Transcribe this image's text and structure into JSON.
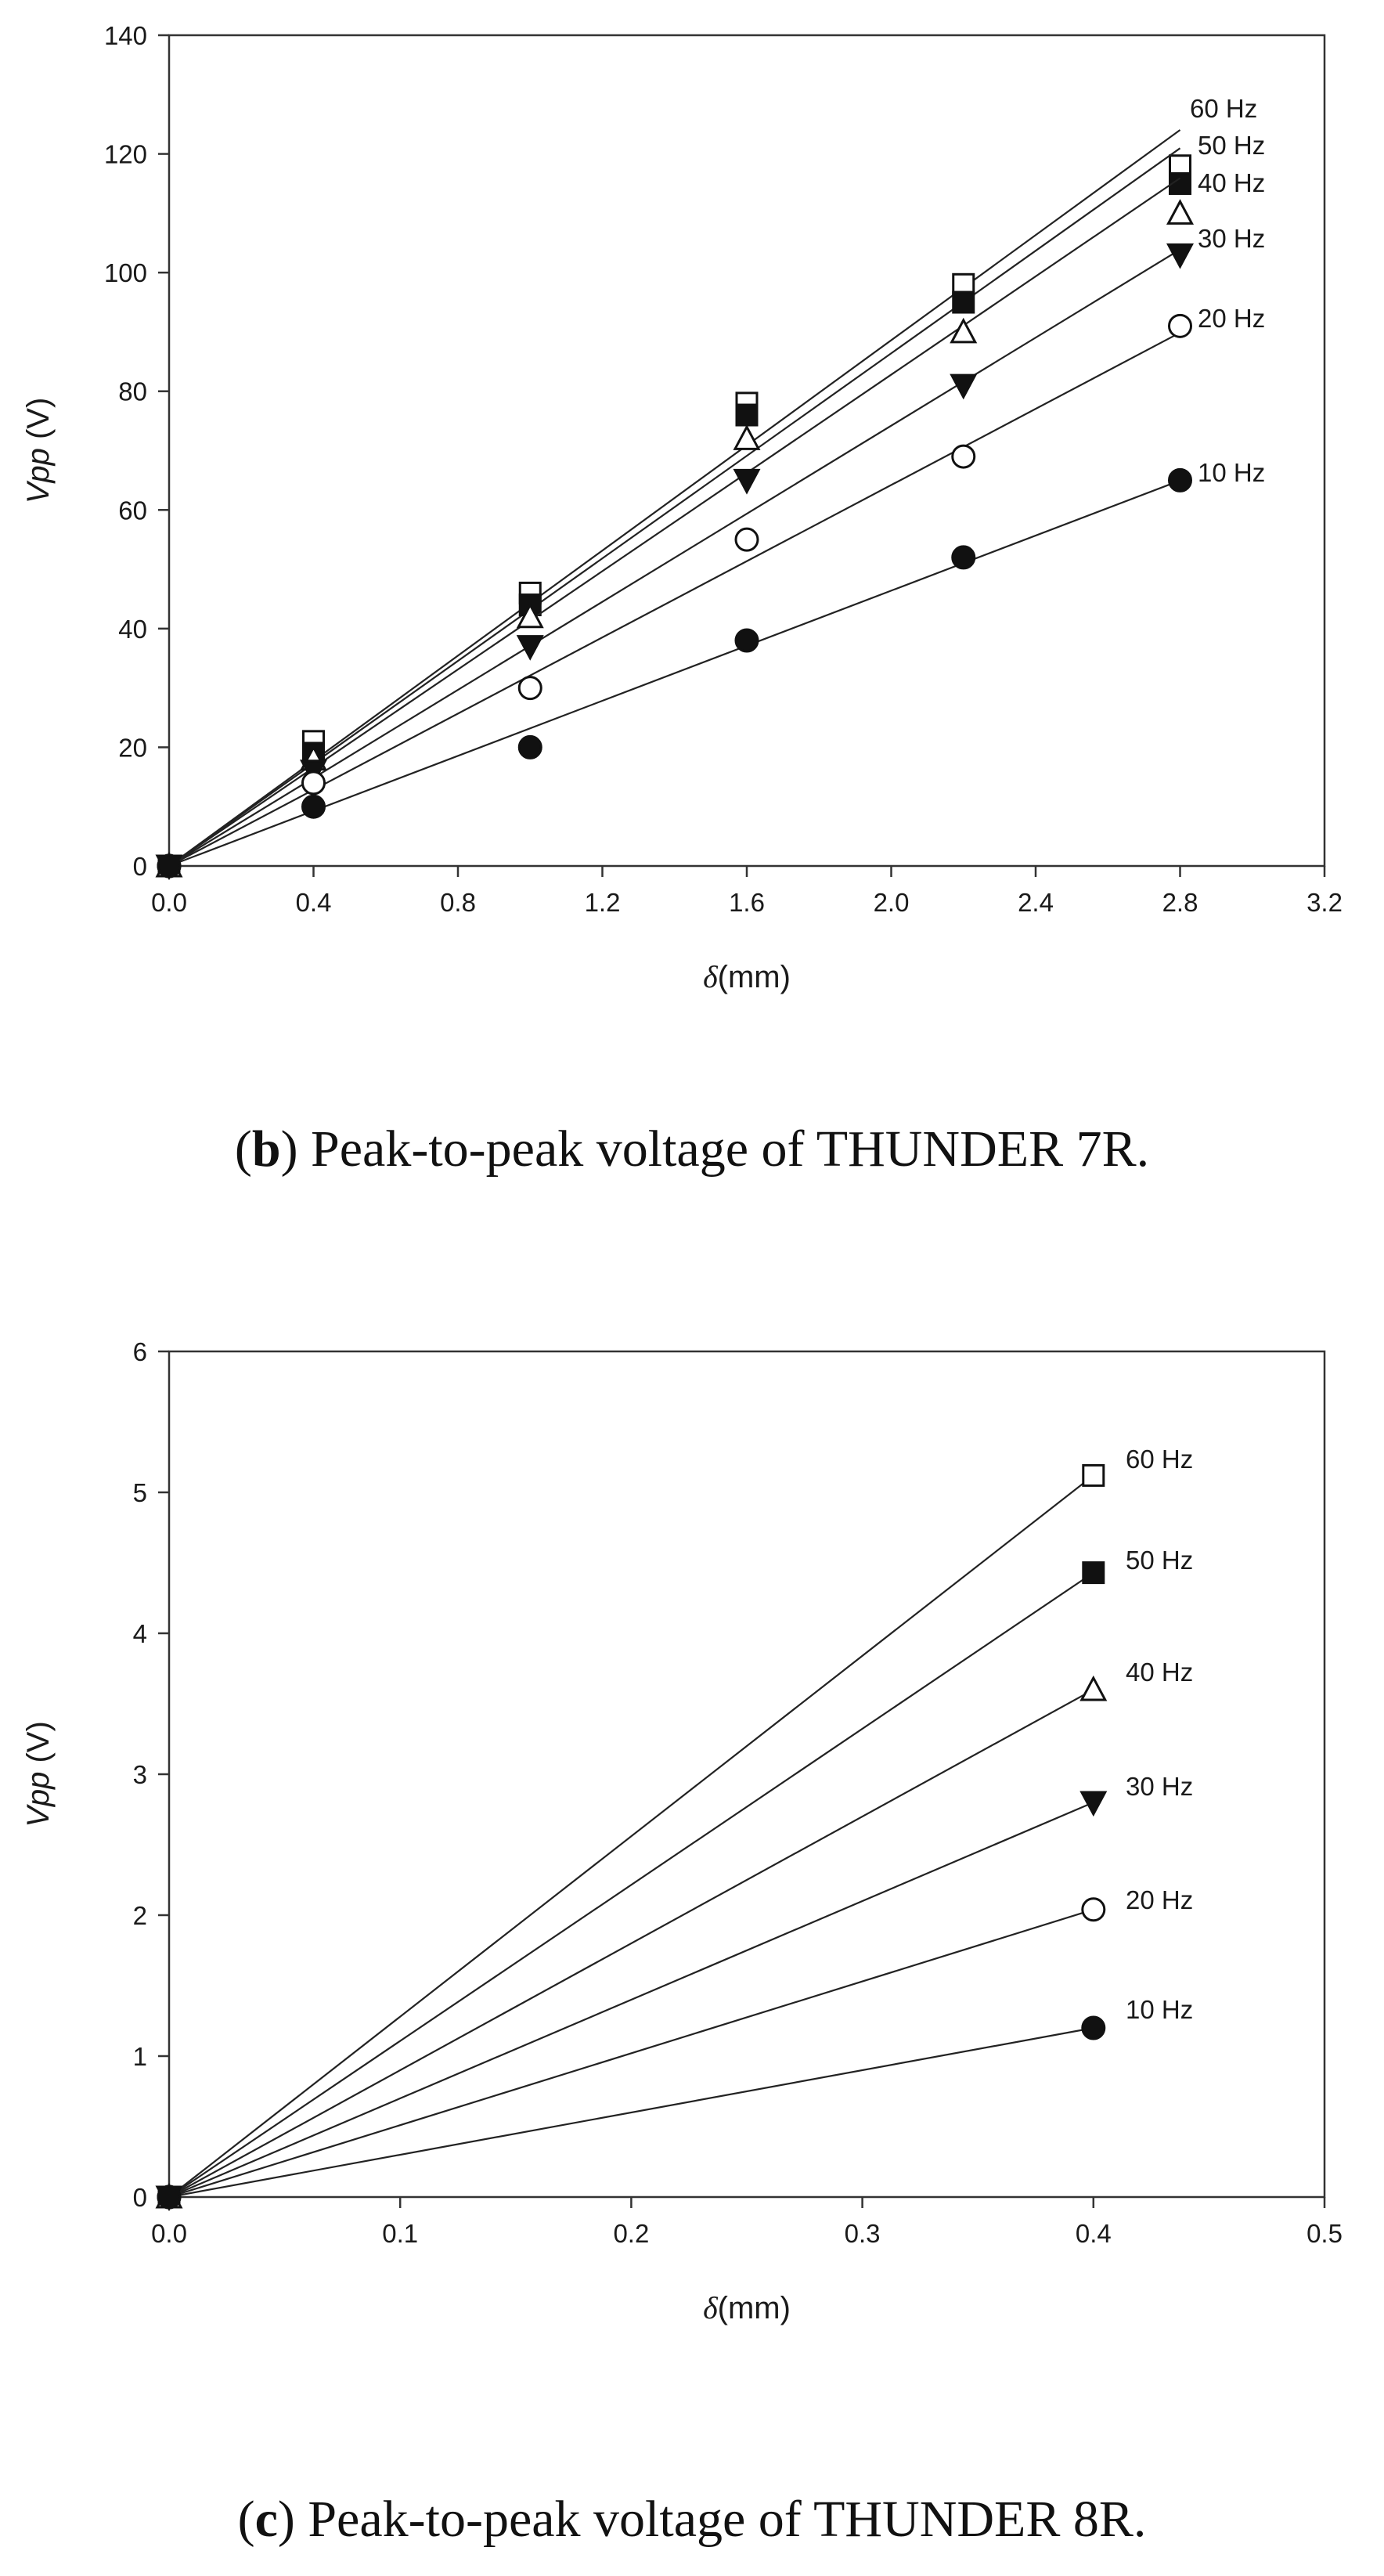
{
  "captions": [
    {
      "prefix": "(",
      "letter": "b",
      "text": ") Peak-to-peak voltage of THUNDER 7R."
    },
    {
      "prefix": "(",
      "letter": "c",
      "text": ") Peak-to-peak voltage of THUNDER 8R."
    }
  ],
  "chart_data": [
    {
      "id": "b",
      "type": "scatter",
      "xlabel_symbol": "δ",
      "xlabel_unit": "(mm)",
      "ylabel_main": "Vpp",
      "ylabel_unit": " (V)",
      "xlim": [
        0,
        3.2
      ],
      "ylim": [
        0,
        140
      ],
      "xticks": [
        0.0,
        0.4,
        0.8,
        1.2,
        1.6,
        2.0,
        2.4,
        2.8,
        3.2
      ],
      "xtick_labels": [
        "0.0",
        "0.4",
        "0.8",
        "1.2",
        "1.6",
        "2.0",
        "2.4",
        "2.8",
        "3.2"
      ],
      "yticks": [
        0,
        20,
        40,
        60,
        80,
        100,
        120,
        140
      ],
      "ytick_labels": [
        "0",
        "20",
        "40",
        "60",
        "80",
        "100",
        "120",
        "140"
      ],
      "grid": false,
      "legend": "inline-right",
      "series": [
        {
          "name": "60 Hz",
          "marker": "open-square",
          "x": [
            0,
            0.4,
            1.0,
            1.6,
            2.2,
            2.8
          ],
          "y": [
            0,
            21,
            46,
            78,
            98,
            118
          ],
          "fit_slope": 44.3
        },
        {
          "name": "50 Hz",
          "marker": "filled-square",
          "x": [
            0,
            0.4,
            1.0,
            1.6,
            2.2,
            2.8
          ],
          "y": [
            0,
            19,
            44,
            76,
            95,
            115
          ],
          "fit_slope": 43.2
        },
        {
          "name": "40 Hz",
          "marker": "open-triangle",
          "x": [
            0,
            0.4,
            1.0,
            1.6,
            2.2,
            2.8
          ],
          "y": [
            0,
            18,
            42,
            72,
            90,
            110
          ],
          "fit_slope": 41.4
        },
        {
          "name": "30 Hz",
          "marker": "filled-down-triangle",
          "x": [
            0,
            0.4,
            1.0,
            1.6,
            2.2,
            2.8
          ],
          "y": [
            0,
            16,
            37,
            65,
            81,
            103
          ],
          "fit_slope": 37.1
        },
        {
          "name": "20 Hz",
          "marker": "open-circle",
          "x": [
            0,
            0.4,
            1.0,
            1.6,
            2.2,
            2.8
          ],
          "y": [
            0,
            14,
            30,
            55,
            69,
            91
          ],
          "fit_slope": 32.1
        },
        {
          "name": "10 Hz",
          "marker": "filled-circle",
          "x": [
            0,
            0.4,
            1.0,
            1.6,
            2.2,
            2.8
          ],
          "y": [
            0,
            10,
            20,
            38,
            52,
            65
          ],
          "fit_slope": 23.2
        }
      ]
    },
    {
      "id": "c",
      "type": "scatter",
      "xlabel_symbol": "δ",
      "xlabel_unit": "(mm)",
      "ylabel_main": "Vpp",
      "ylabel_unit": " (V)",
      "xlim": [
        0,
        0.5
      ],
      "ylim": [
        0,
        6
      ],
      "xticks": [
        0.0,
        0.1,
        0.2,
        0.3,
        0.4,
        0.5
      ],
      "xtick_labels": [
        "0.0",
        "0.1",
        "0.2",
        "0.3",
        "0.4",
        "0.5"
      ],
      "yticks": [
        0,
        1,
        2,
        3,
        4,
        5,
        6
      ],
      "ytick_labels": [
        "0",
        "1",
        "2",
        "3",
        "4",
        "5",
        "6"
      ],
      "grid": false,
      "legend": "inline-right",
      "series": [
        {
          "name": "60 Hz",
          "marker": "open-square",
          "x": [
            0,
            0.4
          ],
          "y": [
            0,
            5.12
          ],
          "fit_slope": 12.8
        },
        {
          "name": "50 Hz",
          "marker": "filled-square",
          "x": [
            0,
            0.4
          ],
          "y": [
            0,
            4.43
          ],
          "fit_slope": 11.075
        },
        {
          "name": "40 Hz",
          "marker": "open-triangle",
          "x": [
            0,
            0.4
          ],
          "y": [
            0,
            3.6
          ],
          "fit_slope": 9.0
        },
        {
          "name": "30 Hz",
          "marker": "filled-down-triangle",
          "x": [
            0,
            0.4
          ],
          "y": [
            0,
            2.8
          ],
          "fit_slope": 7.0
        },
        {
          "name": "20 Hz",
          "marker": "open-circle",
          "x": [
            0,
            0.4
          ],
          "y": [
            0,
            2.04
          ],
          "fit_slope": 5.1
        },
        {
          "name": "10 Hz",
          "marker": "filled-circle",
          "x": [
            0,
            0.4
          ],
          "y": [
            0,
            1.2
          ],
          "fit_slope": 3.0
        }
      ]
    }
  ]
}
